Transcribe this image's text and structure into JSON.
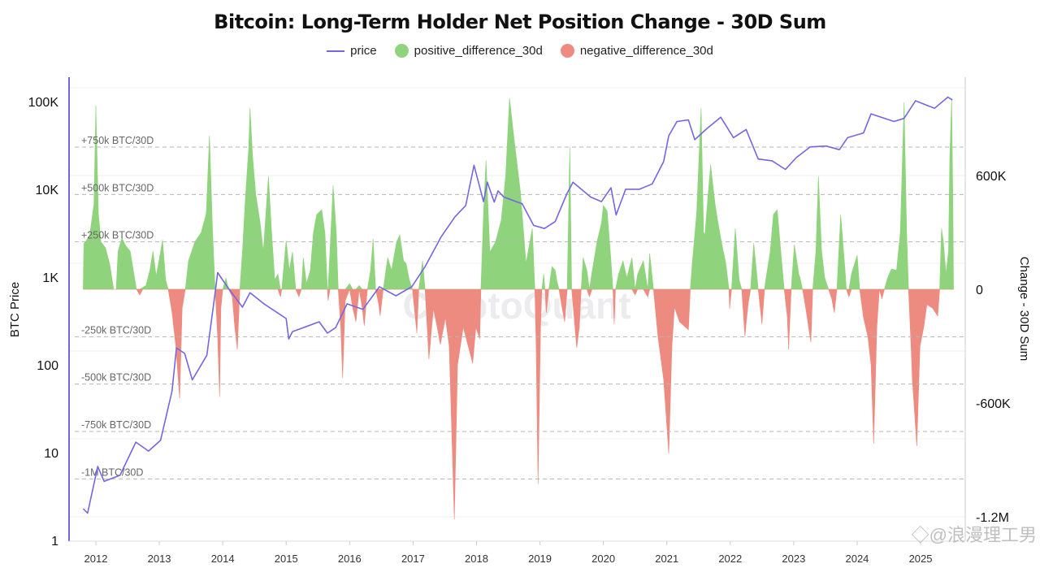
{
  "chart_data": {
    "type": "bar+line",
    "title": "Bitcoin: Long-Term Holder Net Position Change - 30D Sum",
    "legend": [
      "price",
      "positive_difference_30d",
      "negative_difference_30d"
    ],
    "legend_placement": "top-center",
    "colors": {
      "price": "#7466e2",
      "positive": "#8fd47c",
      "negative": "#ee8b80"
    },
    "y_left": {
      "label": "BTC Price",
      "scale": "log",
      "range": [
        1,
        150000
      ],
      "ticks": [
        "1",
        "10",
        "100",
        "1K",
        "10K",
        "100K"
      ],
      "tick_values": [
        1,
        10,
        100,
        1000,
        10000,
        100000
      ]
    },
    "y_right": {
      "label": "Change - 30D Sum",
      "unit": "K BTC",
      "range": [
        -1400,
        1050
      ],
      "ticks": [
        "600K",
        "0",
        "-600K",
        "-1.2M"
      ],
      "tick_values": [
        600,
        0,
        -600,
        -1200
      ]
    },
    "x": {
      "range": [
        2011.7,
        2025.7
      ],
      "ticks": [
        "2012",
        "2013",
        "2014",
        "2015",
        "2016",
        "2017",
        "2018",
        "2019",
        "2020",
        "2021",
        "2022",
        "2023",
        "2024",
        "2025"
      ]
    },
    "annotations": [
      {
        "label": "+750k BTC/30D",
        "value": 750
      },
      {
        "label": "+500k BTC/30D",
        "value": 500
      },
      {
        "label": "+250k BTC/30D",
        "value": 250
      },
      {
        "label": "-250k BTC/30D",
        "value": -250
      },
      {
        "label": "-500k BTC/30D",
        "value": -500
      },
      {
        "label": "-750k BTC/30D",
        "value": -750
      },
      {
        "label": "-1M BTC/30D",
        "value": -1000
      }
    ],
    "grid": true,
    "price": [
      [
        2011.8,
        2.25
      ],
      [
        2011.87,
        2.0
      ],
      [
        2012.03,
        6.8
      ],
      [
        2012.13,
        4.6
      ],
      [
        2012.38,
        5.4
      ],
      [
        2012.63,
        12.9
      ],
      [
        2012.83,
        10.2
      ],
      [
        2013.02,
        13.5
      ],
      [
        2013.2,
        49
      ],
      [
        2013.27,
        153
      ],
      [
        2013.4,
        132
      ],
      [
        2013.52,
        66
      ],
      [
        2013.75,
        126
      ],
      [
        2013.88,
        651
      ],
      [
        2013.92,
        1100
      ],
      [
        2014.04,
        820
      ],
      [
        2014.14,
        650
      ],
      [
        2014.31,
        445
      ],
      [
        2014.43,
        650
      ],
      [
        2014.65,
        485
      ],
      [
        2015.0,
        330
      ],
      [
        2015.04,
        193
      ],
      [
        2015.1,
        234
      ],
      [
        2015.52,
        303
      ],
      [
        2015.65,
        225
      ],
      [
        2015.78,
        260
      ],
      [
        2015.96,
        485
      ],
      [
        2016.21,
        420
      ],
      [
        2016.47,
        760
      ],
      [
        2016.73,
        600
      ],
      [
        2016.98,
        760
      ],
      [
        2017.19,
        1290
      ],
      [
        2017.44,
        2800
      ],
      [
        2017.66,
        4750
      ],
      [
        2017.83,
        6400
      ],
      [
        2017.96,
        18400
      ],
      [
        2018.11,
        7100
      ],
      [
        2018.17,
        11800
      ],
      [
        2018.28,
        7000
      ],
      [
        2018.34,
        9400
      ],
      [
        2018.43,
        8000
      ],
      [
        2018.72,
        6700
      ],
      [
        2018.9,
        3800
      ],
      [
        2019.07,
        3500
      ],
      [
        2019.24,
        4200
      ],
      [
        2019.42,
        8600
      ],
      [
        2019.52,
        11800
      ],
      [
        2019.8,
        8000
      ],
      [
        2019.97,
        7100
      ],
      [
        2020.12,
        10200
      ],
      [
        2020.2,
        5000
      ],
      [
        2020.35,
        9800
      ],
      [
        2020.57,
        9800
      ],
      [
        2020.77,
        11300
      ],
      [
        2020.95,
        20300
      ],
      [
        2021.03,
        40000
      ],
      [
        2021.16,
        58000
      ],
      [
        2021.34,
        60500
      ],
      [
        2021.44,
        36000
      ],
      [
        2021.63,
        48000
      ],
      [
        2021.85,
        65000
      ],
      [
        2022.05,
        38000
      ],
      [
        2022.25,
        47000
      ],
      [
        2022.44,
        21700
      ],
      [
        2022.66,
        20700
      ],
      [
        2022.87,
        16500
      ],
      [
        2023.04,
        22500
      ],
      [
        2023.26,
        29800
      ],
      [
        2023.51,
        30500
      ],
      [
        2023.72,
        27700
      ],
      [
        2023.85,
        38000
      ],
      [
        2024.1,
        43000
      ],
      [
        2024.22,
        71000
      ],
      [
        2024.58,
        58000
      ],
      [
        2024.74,
        63000
      ],
      [
        2024.92,
        100000
      ],
      [
        2025.22,
        82000
      ],
      [
        2025.43,
        110000
      ],
      [
        2025.5,
        102000
      ]
    ],
    "difference_30d": [
      [
        2011.8,
        0
      ],
      [
        2011.81,
        240
      ],
      [
        2011.9,
        280
      ],
      [
        2011.97,
        450
      ],
      [
        2012.0,
        969
      ],
      [
        2012.04,
        400
      ],
      [
        2012.08,
        250
      ],
      [
        2012.15,
        220
      ],
      [
        2012.22,
        130
      ],
      [
        2012.28,
        0
      ],
      [
        2012.32,
        0
      ],
      [
        2012.35,
        200
      ],
      [
        2012.41,
        270
      ],
      [
        2012.47,
        230
      ],
      [
        2012.54,
        200
      ],
      [
        2012.64,
        0
      ],
      [
        2012.69,
        -30
      ],
      [
        2012.74,
        10
      ],
      [
        2012.79,
        20
      ],
      [
        2012.85,
        100
      ],
      [
        2012.9,
        200
      ],
      [
        2012.95,
        70
      ],
      [
        2013.0,
        160
      ],
      [
        2013.05,
        260
      ],
      [
        2013.1,
        50
      ],
      [
        2013.14,
        0
      ],
      [
        2013.2,
        -120
      ],
      [
        2013.26,
        -300
      ],
      [
        2013.32,
        -575
      ],
      [
        2013.36,
        -100
      ],
      [
        2013.41,
        0
      ],
      [
        2013.46,
        150
      ],
      [
        2013.56,
        250
      ],
      [
        2013.66,
        300
      ],
      [
        2013.74,
        400
      ],
      [
        2013.79,
        810
      ],
      [
        2013.84,
        300
      ],
      [
        2013.88,
        0
      ],
      [
        2013.92,
        -250
      ],
      [
        2013.95,
        -568
      ],
      [
        2013.97,
        -100
      ],
      [
        2014.0,
        0
      ],
      [
        2014.05,
        60
      ],
      [
        2014.09,
        0
      ],
      [
        2014.15,
        -40
      ],
      [
        2014.19,
        -200
      ],
      [
        2014.23,
        -317
      ],
      [
        2014.27,
        0
      ],
      [
        2014.31,
        200
      ],
      [
        2014.36,
        500
      ],
      [
        2014.41,
        750
      ],
      [
        2014.43,
        956
      ],
      [
        2014.47,
        700
      ],
      [
        2014.52,
        500
      ],
      [
        2014.59,
        350
      ],
      [
        2014.64,
        200
      ],
      [
        2014.72,
        596
      ],
      [
        2014.77,
        300
      ],
      [
        2014.82,
        50
      ],
      [
        2014.87,
        80
      ],
      [
        2014.91,
        -40
      ],
      [
        2014.93,
        0
      ],
      [
        2014.97,
        150
      ],
      [
        2015.0,
        257
      ],
      [
        2015.05,
        100
      ],
      [
        2015.1,
        197
      ],
      [
        2015.15,
        0
      ],
      [
        2015.2,
        -40
      ],
      [
        2015.24,
        0
      ],
      [
        2015.27,
        167
      ],
      [
        2015.32,
        30
      ],
      [
        2015.38,
        100
      ],
      [
        2015.43,
        300
      ],
      [
        2015.48,
        394
      ],
      [
        2015.56,
        420
      ],
      [
        2015.61,
        300
      ],
      [
        2015.65,
        0
      ],
      [
        2015.66,
        -60
      ],
      [
        2015.69,
        200
      ],
      [
        2015.74,
        548
      ],
      [
        2015.79,
        300
      ],
      [
        2015.82,
        0
      ],
      [
        2015.86,
        -200
      ],
      [
        2015.89,
        -467
      ],
      [
        2015.93,
        -60
      ],
      [
        2016.0,
        30
      ],
      [
        2016.05,
        -100
      ],
      [
        2016.1,
        -171
      ],
      [
        2016.15,
        20
      ],
      [
        2016.2,
        -100
      ],
      [
        2016.23,
        -193
      ],
      [
        2016.28,
        0
      ],
      [
        2016.33,
        100
      ],
      [
        2016.37,
        266
      ],
      [
        2016.41,
        0
      ],
      [
        2016.46,
        -80
      ],
      [
        2016.48,
        -141
      ],
      [
        2016.53,
        0
      ],
      [
        2016.6,
        167
      ],
      [
        2016.66,
        100
      ],
      [
        2016.74,
        250
      ],
      [
        2016.79,
        287
      ],
      [
        2016.85,
        150
      ],
      [
        2016.89,
        137
      ],
      [
        2016.94,
        50
      ],
      [
        2016.99,
        0
      ],
      [
        2017.06,
        -231
      ],
      [
        2017.09,
        0
      ],
      [
        2017.15,
        150
      ],
      [
        2017.19,
        0
      ],
      [
        2017.25,
        -369
      ],
      [
        2017.32,
        -100
      ],
      [
        2017.38,
        -200
      ],
      [
        2017.43,
        -291
      ],
      [
        2017.51,
        -150
      ],
      [
        2017.57,
        -300
      ],
      [
        2017.65,
        -1213
      ],
      [
        2017.7,
        -400
      ],
      [
        2017.79,
        -200
      ],
      [
        2017.87,
        -300
      ],
      [
        2017.94,
        -390
      ],
      [
        2017.99,
        -200
      ],
      [
        2018.05,
        -262
      ],
      [
        2018.07,
        0
      ],
      [
        2018.11,
        400
      ],
      [
        2018.15,
        681
      ],
      [
        2018.21,
        197
      ],
      [
        2018.3,
        250
      ],
      [
        2018.39,
        364
      ],
      [
        2018.46,
        600
      ],
      [
        2018.52,
        1007
      ],
      [
        2018.59,
        800
      ],
      [
        2018.69,
        519
      ],
      [
        2018.78,
        137
      ],
      [
        2018.84,
        250
      ],
      [
        2018.88,
        321
      ],
      [
        2018.92,
        0
      ],
      [
        2018.94,
        -300
      ],
      [
        2018.97,
        -1028
      ],
      [
        2019.01,
        -200
      ],
      [
        2019.03,
        0
      ],
      [
        2019.06,
        80
      ],
      [
        2019.08,
        0
      ],
      [
        2019.1,
        -124
      ],
      [
        2019.14,
        0
      ],
      [
        2019.19,
        120
      ],
      [
        2019.24,
        100
      ],
      [
        2019.27,
        40
      ],
      [
        2019.3,
        0
      ],
      [
        2019.35,
        -100
      ],
      [
        2019.39,
        -171
      ],
      [
        2019.43,
        0
      ],
      [
        2019.47,
        750
      ],
      [
        2019.5,
        0
      ],
      [
        2019.54,
        -150
      ],
      [
        2019.58,
        -309
      ],
      [
        2019.62,
        -200
      ],
      [
        2019.65,
        0
      ],
      [
        2019.68,
        167
      ],
      [
        2019.74,
        100
      ],
      [
        2019.78,
        -40
      ],
      [
        2019.82,
        90
      ],
      [
        2019.9,
        250
      ],
      [
        2019.97,
        350
      ],
      [
        2020.0,
        442
      ],
      [
        2020.06,
        412
      ],
      [
        2020.12,
        150
      ],
      [
        2020.15,
        0
      ],
      [
        2020.17,
        -184
      ],
      [
        2020.19,
        0
      ],
      [
        2020.24,
        80
      ],
      [
        2020.31,
        150
      ],
      [
        2020.37,
        60
      ],
      [
        2020.45,
        167
      ],
      [
        2020.5,
        -30
      ],
      [
        2020.54,
        80
      ],
      [
        2020.63,
        150
      ],
      [
        2020.7,
        -40
      ],
      [
        2020.73,
        189
      ],
      [
        2020.79,
        0
      ],
      [
        2020.86,
        -249
      ],
      [
        2020.95,
        -476
      ],
      [
        2021.03,
        -866
      ],
      [
        2021.08,
        -300
      ],
      [
        2021.12,
        -94
      ],
      [
        2021.2,
        -171
      ],
      [
        2021.34,
        -214
      ],
      [
        2021.37,
        0
      ],
      [
        2021.4,
        137
      ],
      [
        2021.47,
        400
      ],
      [
        2021.54,
        956
      ],
      [
        2021.58,
        300
      ],
      [
        2021.6,
        287
      ],
      [
        2021.65,
        500
      ],
      [
        2021.69,
        656
      ],
      [
        2021.76,
        450
      ],
      [
        2021.8,
        364
      ],
      [
        2021.86,
        250
      ],
      [
        2021.93,
        137
      ],
      [
        2021.98,
        0
      ],
      [
        2021.99,
        -103
      ],
      [
        2022.02,
        0
      ],
      [
        2022.08,
        321
      ],
      [
        2022.14,
        50
      ],
      [
        2022.18,
        0
      ],
      [
        2022.23,
        -249
      ],
      [
        2022.28,
        -80
      ],
      [
        2022.32,
        0
      ],
      [
        2022.37,
        244
      ],
      [
        2022.44,
        0
      ],
      [
        2022.5,
        -184
      ],
      [
        2022.54,
        0
      ],
      [
        2022.56,
        50
      ],
      [
        2022.63,
        200
      ],
      [
        2022.68,
        394
      ],
      [
        2022.74,
        420
      ],
      [
        2022.81,
        150
      ],
      [
        2022.85,
        0
      ],
      [
        2022.9,
        -150
      ],
      [
        2022.92,
        -317
      ],
      [
        2022.96,
        0
      ],
      [
        2023.01,
        236
      ],
      [
        2023.08,
        80
      ],
      [
        2023.1,
        60
      ],
      [
        2023.14,
        0
      ],
      [
        2023.19,
        -100
      ],
      [
        2023.27,
        -279
      ],
      [
        2023.3,
        0
      ],
      [
        2023.35,
        200
      ],
      [
        2023.39,
        596
      ],
      [
        2023.44,
        200
      ],
      [
        2023.49,
        60
      ],
      [
        2023.55,
        0
      ],
      [
        2023.6,
        -50
      ],
      [
        2023.64,
        -124
      ],
      [
        2023.68,
        0
      ],
      [
        2023.74,
        394
      ],
      [
        2023.81,
        100
      ],
      [
        2023.83,
        0
      ],
      [
        2023.87,
        -40
      ],
      [
        2023.91,
        80
      ],
      [
        2024.0,
        180
      ],
      [
        2024.04,
        0
      ],
      [
        2024.1,
        -150
      ],
      [
        2024.17,
        -250
      ],
      [
        2024.22,
        -400
      ],
      [
        2024.26,
        -814
      ],
      [
        2024.31,
        -200
      ],
      [
        2024.35,
        0
      ],
      [
        2024.39,
        -50
      ],
      [
        2024.43,
        0
      ],
      [
        2024.48,
        60
      ],
      [
        2024.54,
        107
      ],
      [
        2024.62,
        100
      ],
      [
        2024.68,
        300
      ],
      [
        2024.74,
        986
      ],
      [
        2024.78,
        300
      ],
      [
        2024.81,
        0
      ],
      [
        2024.85,
        -300
      ],
      [
        2024.87,
        -476
      ],
      [
        2024.94,
        -827
      ],
      [
        2024.99,
        -300
      ],
      [
        2025.05,
        -200
      ],
      [
        2025.1,
        -80
      ],
      [
        2025.19,
        -100
      ],
      [
        2025.27,
        -141
      ],
      [
        2025.3,
        0
      ],
      [
        2025.33,
        321
      ],
      [
        2025.36,
        250
      ],
      [
        2025.4,
        80
      ],
      [
        2025.44,
        200
      ],
      [
        2025.46,
        700
      ],
      [
        2025.49,
        1007
      ],
      [
        2025.51,
        400
      ],
      [
        2025.52,
        0
      ]
    ]
  },
  "watermarks": {
    "center": "CryptoQuant",
    "corner": "@浪漫理工男"
  }
}
